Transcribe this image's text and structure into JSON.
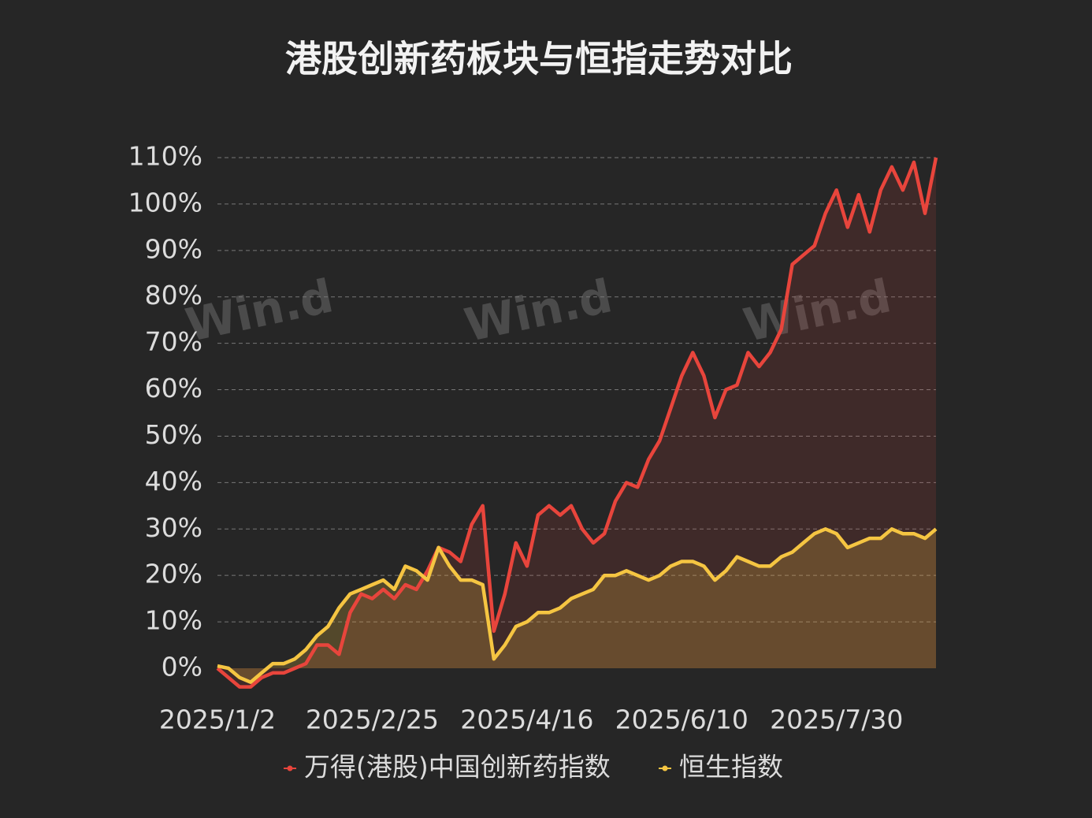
{
  "chart_data": {
    "type": "line",
    "title": "港股创新药板块与恒指走势对比",
    "watermark": "Win.d",
    "categories": [
      "2025/1/2",
      null,
      null,
      null,
      null,
      null,
      null,
      null,
      null,
      null,
      null,
      null,
      null,
      null,
      "2025/2/25",
      null,
      null,
      null,
      null,
      null,
      null,
      null,
      null,
      null,
      null,
      null,
      null,
      null,
      "2025/4/16",
      null,
      null,
      null,
      null,
      null,
      null,
      null,
      null,
      null,
      null,
      null,
      null,
      null,
      "2025/6/10",
      null,
      null,
      null,
      null,
      null,
      null,
      null,
      null,
      null,
      null,
      null,
      null,
      null,
      "2025/7/30",
      null,
      null,
      null,
      null,
      null,
      null,
      null,
      null,
      null
    ],
    "series": [
      {
        "name": "万得(港股)中国创新药指数",
        "color": "#e8453c",
        "values": [
          0,
          -2,
          -4,
          -4,
          -2,
          -1,
          -1,
          0,
          1,
          5,
          5,
          3,
          12,
          16,
          15,
          17,
          15,
          18,
          17,
          21,
          26,
          25,
          23,
          31,
          35,
          8,
          16,
          27,
          22,
          33,
          35,
          33,
          35,
          30,
          27,
          29,
          36,
          40,
          39,
          45,
          49,
          56,
          63,
          68,
          63,
          54,
          60,
          61,
          68,
          65,
          68,
          73,
          87,
          89,
          91,
          98,
          103,
          95,
          102,
          94,
          103,
          108,
          103,
          109,
          98,
          110
        ]
      },
      {
        "name": "恒生指数",
        "color": "#f5c542",
        "values": [
          0.5,
          0,
          -2,
          -3,
          -1,
          1,
          1,
          2,
          4,
          7,
          9,
          13,
          16,
          17,
          18,
          19,
          17,
          22,
          21,
          19,
          26,
          22,
          19,
          19,
          18,
          2,
          5,
          9,
          10,
          12,
          12,
          13,
          15,
          16,
          17,
          20,
          20,
          21,
          20,
          19,
          20,
          22,
          23,
          23,
          22,
          19,
          21,
          24,
          23,
          22,
          22,
          24,
          25,
          27,
          29,
          30,
          29,
          26,
          27,
          28,
          28,
          30,
          29,
          29,
          28,
          30
        ]
      }
    ],
    "ylim": [
      0,
      110
    ],
    "yticks": [
      {
        "value": 0,
        "label": "0%"
      },
      {
        "value": 10,
        "label": "10%"
      },
      {
        "value": 20,
        "label": "20%"
      },
      {
        "value": 30,
        "label": "30%"
      },
      {
        "value": 40,
        "label": "40%"
      },
      {
        "value": 50,
        "label": "50%"
      },
      {
        "value": 60,
        "label": "60%"
      },
      {
        "value": 70,
        "label": "70%"
      },
      {
        "value": 80,
        "label": "80%"
      },
      {
        "value": 90,
        "label": "90%"
      },
      {
        "value": 100,
        "label": "100%"
      },
      {
        "value": 110,
        "label": "110%"
      }
    ],
    "grid": true,
    "legend": "bottom"
  }
}
